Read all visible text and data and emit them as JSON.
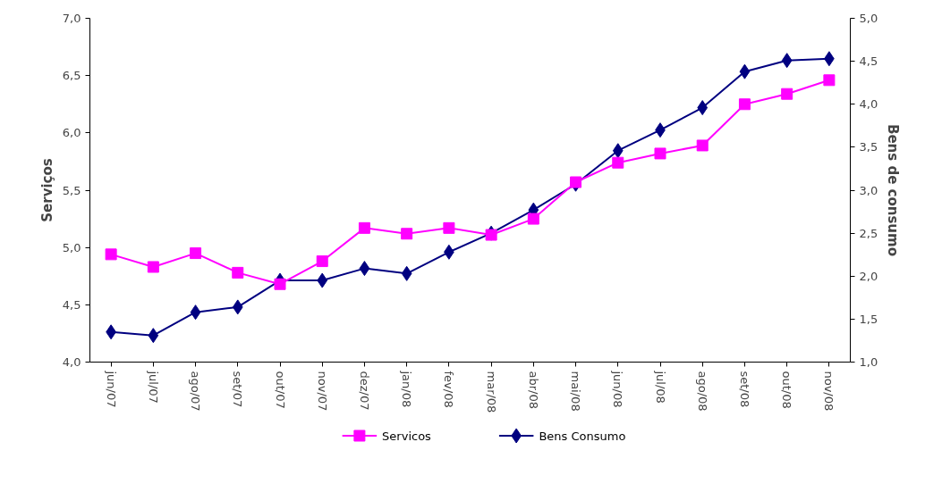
{
  "chart_data": {
    "type": "line",
    "ylabel": "Serviços",
    "y2label": "Bens de consumo",
    "categories": [
      "jun/07",
      "jul/07",
      "ago/07",
      "set/07",
      "out/07",
      "nov/07",
      "dez/07",
      "jan/08",
      "fev/08",
      "mar/08",
      "abr/08",
      "mai/08",
      "jun/08",
      "jul/08",
      "ago/08",
      "set/08",
      "out/08",
      "nov/08"
    ],
    "series": [
      {
        "name": "Servicos",
        "color": "#ff00ff",
        "marker": "square",
        "values": [
          4.94,
          4.83,
          4.95,
          4.78,
          4.68,
          4.88,
          5.17,
          5.12,
          5.17,
          5.11,
          5.25,
          5.57,
          5.74,
          5.82,
          5.89,
          6.25,
          6.34,
          6.46
        ]
      },
      {
        "name": "Bens Consumo",
        "color": "#000080",
        "marker": "diamond",
        "axis": "y2",
        "values": [
          1.35,
          1.31,
          1.58,
          1.64,
          1.95,
          1.95,
          2.09,
          2.03,
          2.28,
          2.5,
          2.77,
          3.07,
          3.46,
          3.7,
          3.96,
          4.38,
          4.51,
          4.53
        ]
      }
    ],
    "ylim": [
      4.0,
      7.0
    ],
    "yticks": [
      {
        "value": 4.0,
        "label": "4,0"
      },
      {
        "value": 4.5,
        "label": "4,5"
      },
      {
        "value": 5.0,
        "label": "5,0"
      },
      {
        "value": 5.5,
        "label": "5,5"
      },
      {
        "value": 6.0,
        "label": "6,0"
      },
      {
        "value": 6.5,
        "label": "6,5"
      },
      {
        "value": 7.0,
        "label": "7,0"
      }
    ],
    "y2lim": [
      1.0,
      5.0
    ],
    "y2ticks": [
      {
        "value": 1.0,
        "label": "1,0"
      },
      {
        "value": 1.5,
        "label": "1,5"
      },
      {
        "value": 2.0,
        "label": "2,0"
      },
      {
        "value": 2.5,
        "label": "2,5"
      },
      {
        "value": 3.0,
        "label": "3,0"
      },
      {
        "value": 3.5,
        "label": "3,5"
      },
      {
        "value": 4.0,
        "label": "4,0"
      },
      {
        "value": 4.5,
        "label": "4,5"
      },
      {
        "value": 5.0,
        "label": "5,0"
      }
    ],
    "grid": false,
    "legend": "bottom",
    "line_style": "solid"
  }
}
